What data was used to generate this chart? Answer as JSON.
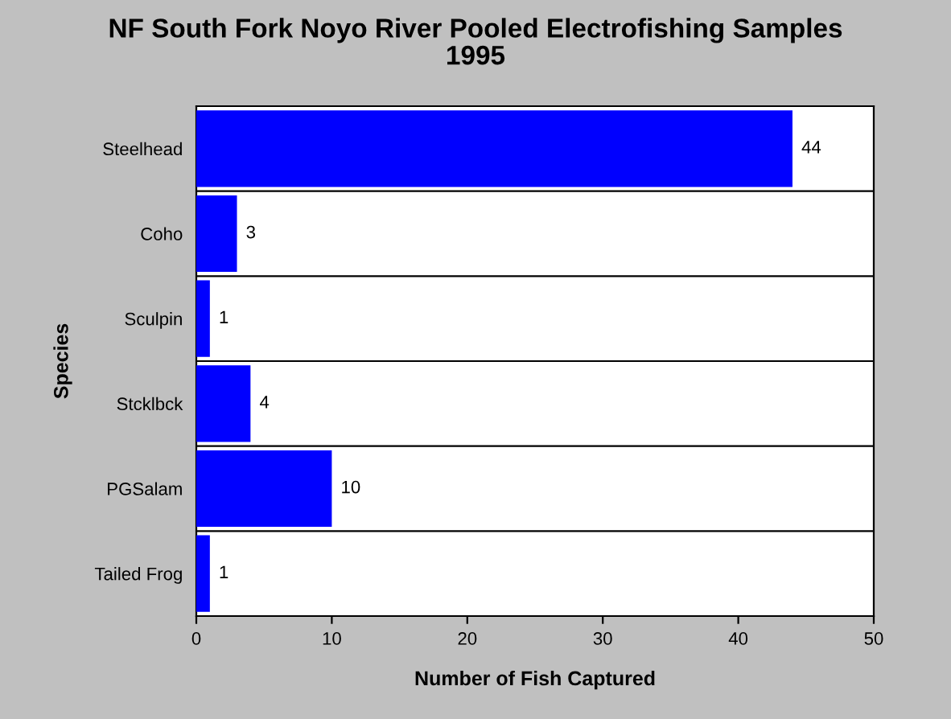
{
  "chart_data": {
    "type": "bar",
    "orientation": "horizontal",
    "title": "NF South Fork Noyo River Pooled Electrofishing Samples\n1995",
    "xlabel": "Number of Fish Captured",
    "ylabel": "Species",
    "categories": [
      "Steelhead",
      "Coho",
      "Sculpin",
      "Stcklbck",
      "PGSalam",
      "Tailed Frog"
    ],
    "values": [
      44,
      3,
      1,
      4,
      10,
      1
    ],
    "color": "#0000ff",
    "xlim": [
      0,
      50
    ],
    "xticks": [
      0,
      10,
      20,
      30,
      40,
      50
    ],
    "grid": "y",
    "data_labels": true
  }
}
